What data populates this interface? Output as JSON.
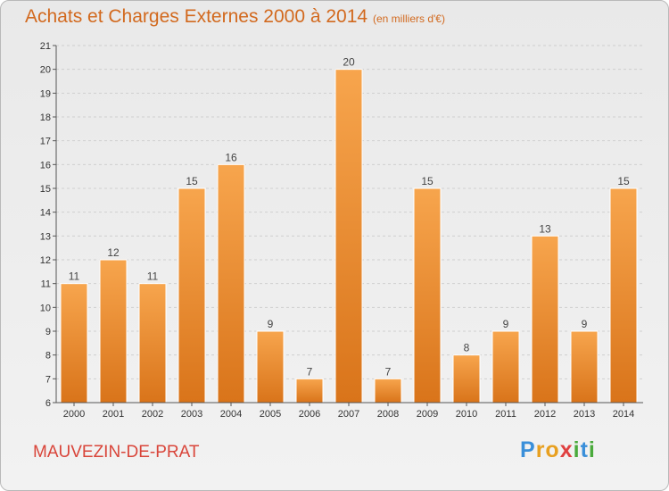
{
  "chart_data": {
    "type": "bar",
    "title": "Achats et Charges Externes 2000 à 2014",
    "subtitle": "(en milliers d'€)",
    "categories": [
      "2000",
      "2001",
      "2002",
      "2003",
      "2004",
      "2005",
      "2006",
      "2007",
      "2008",
      "2009",
      "2010",
      "2011",
      "2012",
      "2013",
      "2014"
    ],
    "values": [
      11,
      12,
      11,
      15,
      16,
      9,
      7,
      20,
      7,
      15,
      8,
      9,
      13,
      9,
      15
    ],
    "ylim": [
      6,
      21
    ],
    "yticks": [
      6,
      7,
      8,
      9,
      10,
      11,
      12,
      13,
      14,
      15,
      16,
      17,
      18,
      19,
      20,
      21
    ],
    "grid": true,
    "colors": {
      "bar_top": "#f7a54d",
      "bar_bottom": "#d9741a",
      "title": "#d2691e",
      "commune": "#d9453a"
    }
  },
  "footer": {
    "commune": "MAUVEZIN-DE-PRAT"
  },
  "logo": {
    "letters": [
      {
        "ch": "P",
        "color": "#3a8fd9"
      },
      {
        "ch": "r",
        "color": "#e8a020"
      },
      {
        "ch": "o",
        "color": "#e8a020"
      },
      {
        "ch": "x",
        "color": "#e04040"
      },
      {
        "ch": "i",
        "color": "#4aaa3c"
      },
      {
        "ch": "t",
        "color": "#3a8fd9"
      },
      {
        "ch": "i",
        "color": "#4aaa3c"
      }
    ]
  }
}
